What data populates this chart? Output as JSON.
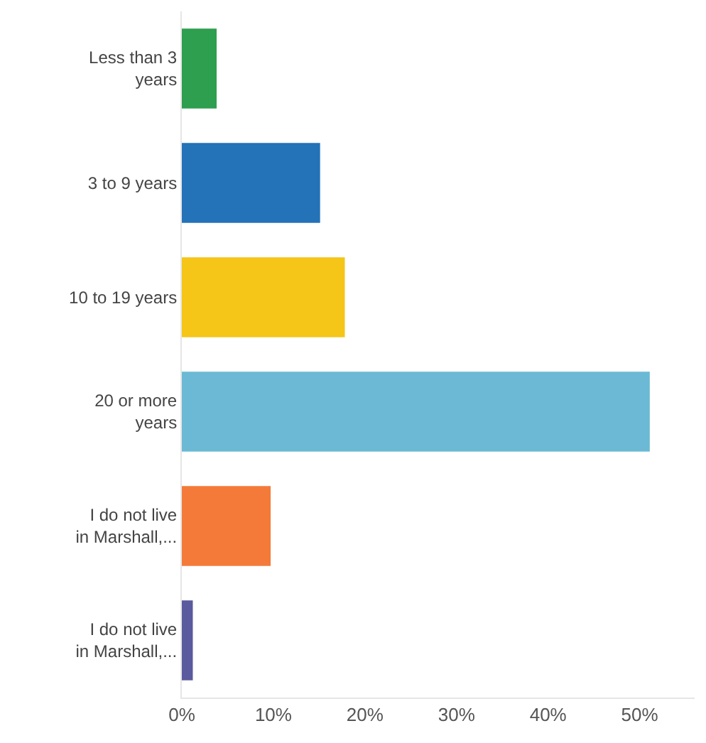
{
  "chart_data": {
    "type": "bar",
    "orientation": "horizontal",
    "categories": [
      "Less than 3 years",
      "3 to 9 years",
      "10 to 19 years",
      "20 or more years",
      "I do not live in Marshall,...",
      "I do not live in Marshall,..."
    ],
    "values": [
      3.8,
      15.1,
      17.8,
      51.1,
      9.7,
      1.2
    ],
    "colors": [
      "#2e9e4f",
      "#2472b8",
      "#f5c518",
      "#6bb9d4",
      "#f47a3a",
      "#5a5a9e"
    ],
    "xlim": [
      0,
      56
    ],
    "xticks": [
      {
        "value": 0,
        "label": "0%"
      },
      {
        "value": 10,
        "label": "10%"
      },
      {
        "value": 20,
        "label": "20%"
      },
      {
        "value": 30,
        "label": "30%"
      },
      {
        "value": 40,
        "label": "40%"
      },
      {
        "value": 50,
        "label": "50%"
      }
    ],
    "grid": false
  }
}
